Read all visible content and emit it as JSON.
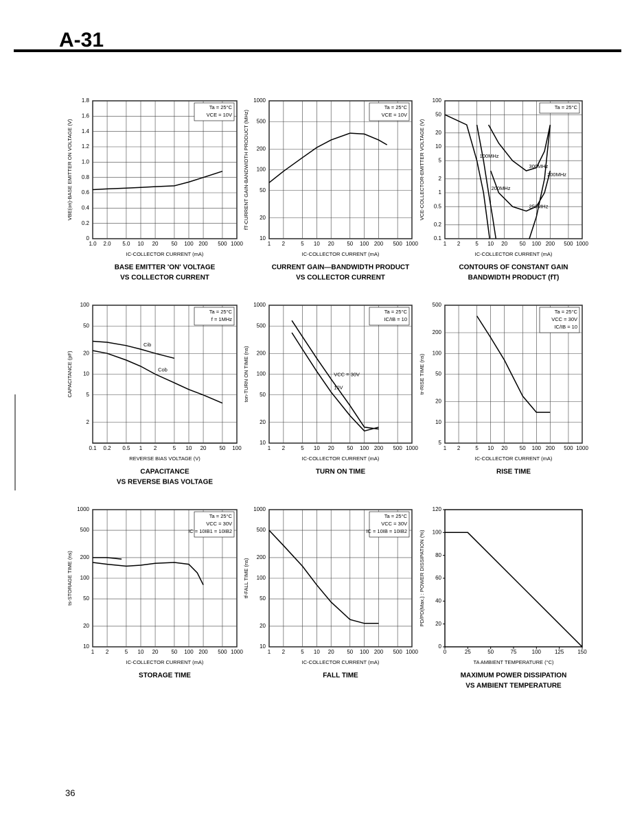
{
  "header": {
    "title": "A-31"
  },
  "page_number": "36",
  "chart_data": [
    {
      "type": "line",
      "title": [
        "BASE EMITTER 'ON' VOLTAGE",
        "VS COLLECTOR CURRENT"
      ],
      "x_label": "IC-COLLECTOR CURRENT (mA)",
      "y_label": "VBE(on)-BASE EMITTER ON VOLTAGE (V)",
      "annotations": [
        "Ta = 25°C",
        "VCE = 10V"
      ],
      "xlog": true,
      "ylog": false,
      "grid": true,
      "xlim": [
        1,
        1000
      ],
      "xticks": [
        {
          "value": 1,
          "label": "1.0"
        },
        {
          "value": 2,
          "label": "2.0"
        },
        {
          "value": 5,
          "label": "5.0"
        },
        10,
        20,
        50,
        100,
        200,
        500,
        1000
      ],
      "ylim": [
        0,
        1.8
      ],
      "yticks": [
        0,
        0.2,
        0.4,
        0.6,
        0.8,
        {
          "value": 1,
          "label": "1.0"
        },
        1.2,
        1.4,
        1.6,
        1.8
      ],
      "series": [
        {
          "color": "#000000",
          "x": [
            1,
            2,
            5,
            10,
            20,
            50,
            100,
            200,
            500
          ],
          "values": [
            0.64,
            0.65,
            0.66,
            0.67,
            0.68,
            0.69,
            0.74,
            0.8,
            0.88
          ]
        }
      ]
    },
    {
      "type": "line",
      "title": [
        "CURRENT GAIN—BANDWIDTH PRODUCT",
        "VS COLLECTOR CURRENT"
      ],
      "x_label": "IC-COLLECTOR CURRENT (mA)",
      "y_label": "fT-CURRENT GAIN-BANDWIDTH PRODUCT (MHz)",
      "annotations": [
        "Ta = 25°C",
        "VCE = 10V"
      ],
      "xlog": true,
      "ylog": true,
      "grid": true,
      "xlim": [
        1,
        1000
      ],
      "xticks": [
        1,
        2,
        5,
        10,
        20,
        50,
        100,
        200,
        500,
        1000
      ],
      "ylim": [
        10,
        1000
      ],
      "yticks": [
        10,
        20,
        50,
        100,
        200,
        500,
        1000
      ],
      "series": [
        {
          "color": "#000000",
          "x": [
            1,
            2,
            5,
            10,
            20,
            50,
            100,
            200,
            300
          ],
          "values": [
            65,
            95,
            150,
            210,
            270,
            340,
            330,
            270,
            230
          ]
        }
      ]
    },
    {
      "type": "line",
      "title": [
        "CONTOURS OF CONSTANT GAIN",
        "BANDWIDTH PRODUCT (fT)"
      ],
      "x_label": "IC-COLLECTOR CURRENT (mA)",
      "y_label": "VCE-COLLECTOR-EMITTER VOLTAGE (V)",
      "annotations": [
        "Ta = 25°C"
      ],
      "xlog": true,
      "ylog": true,
      "grid": true,
      "xlim": [
        1,
        1000
      ],
      "xticks": [
        1,
        2,
        5,
        10,
        20,
        50,
        100,
        200,
        500,
        1000
      ],
      "ylim": [
        0.1,
        100
      ],
      "yticks": [
        0.1,
        0.2,
        0.5,
        1,
        2,
        5,
        10,
        20,
        50,
        100
      ],
      "series": [
        {
          "name": "100MHz",
          "color": "#000000",
          "x": [
            1,
            3,
            5,
            7,
            9.5
          ],
          "values": [
            50,
            30,
            5,
            1,
            0.1
          ]
        },
        {
          "name": "200MHz",
          "color": "#000000",
          "x": [
            5,
            7,
            9,
            11,
            13
          ],
          "values": [
            30,
            5,
            1,
            0.3,
            0.1
          ]
        },
        {
          "name": "300MHz",
          "color": "#000000",
          "x": [
            9,
            15,
            30,
            60,
            100,
            150,
            200
          ],
          "values": [
            30,
            12,
            5,
            3,
            3.5,
            8,
            30
          ]
        },
        {
          "name": "250MHz",
          "color": "#000000",
          "x": [
            10,
            15,
            30,
            60,
            100,
            150,
            200
          ],
          "values": [
            3,
            1,
            0.5,
            0.4,
            0.5,
            1,
            3
          ]
        },
        {
          "name": "200MHz",
          "color": "#000000",
          "x": [
            70,
            100,
            150,
            200
          ],
          "values": [
            0.1,
            0.3,
            2,
            30
          ]
        }
      ]
    },
    {
      "type": "line",
      "title": [
        "CAPACITANCE",
        "VS REVERSE BIAS VOLTAGE"
      ],
      "x_label": "REVERSE BIAS VOLTAGE (V)",
      "y_label": "CAPACITANCE (pF)",
      "annotations": [
        "Ta = 25°C",
        "f = 1MHz"
      ],
      "xlog": true,
      "ylog": true,
      "grid": true,
      "xlim": [
        0.1,
        100
      ],
      "xticks": [
        0.1,
        0.2,
        0.5,
        1,
        2,
        5,
        10,
        20,
        50,
        100
      ],
      "ylim": [
        1,
        100
      ],
      "yticks": [
        2,
        5,
        10,
        20,
        50,
        100
      ],
      "series": [
        {
          "name": "Cib",
          "color": "#000000",
          "x": [
            0.1,
            0.2,
            0.5,
            1,
            2,
            5
          ],
          "values": [
            30,
            29,
            26,
            23,
            20,
            17
          ]
        },
        {
          "name": "Cob",
          "color": "#000000",
          "x": [
            0.1,
            0.2,
            0.5,
            1,
            2,
            5,
            10,
            20,
            50
          ],
          "values": [
            22,
            20,
            16,
            13,
            10,
            7.5,
            6,
            5,
            3.8
          ]
        }
      ]
    },
    {
      "type": "line",
      "title": [
        "TURN ON TIME"
      ],
      "x_label": "IC-COLLECTOR CURRENT (mA)",
      "y_label": "ton-TURN ON TIME (ns)",
      "annotations": [
        "Ta = 25°C",
        "IC/IB = 10"
      ],
      "xlog": true,
      "ylog": true,
      "grid": true,
      "xlim": [
        1,
        1000
      ],
      "xticks": [
        1,
        2,
        5,
        10,
        20,
        50,
        100,
        200,
        500,
        1000
      ],
      "ylim": [
        10,
        1000
      ],
      "yticks": [
        10,
        20,
        50,
        100,
        200,
        500,
        1000
      ],
      "series": [
        {
          "name": "VCC = 30V",
          "color": "#000000",
          "x": [
            3,
            5,
            10,
            20,
            50,
            100,
            200
          ],
          "values": [
            600,
            350,
            170,
            85,
            35,
            17,
            16
          ]
        },
        {
          "name": "10V",
          "color": "#000000",
          "x": [
            3,
            5,
            10,
            20,
            50,
            100,
            200
          ],
          "values": [
            400,
            230,
            110,
            55,
            25,
            15,
            17
          ]
        }
      ]
    },
    {
      "type": "line",
      "title": [
        "RISE TIME"
      ],
      "x_label": "IC-COLLECTOR CURRENT (mA)",
      "y_label": "tr-RISE TIME (ns)",
      "annotations": [
        "Ta = 25°C",
        "VCC = 30V",
        "IC/IB = 10"
      ],
      "xlog": true,
      "ylog": true,
      "grid": true,
      "xlim": [
        1,
        1000
      ],
      "xticks": [
        1,
        2,
        5,
        10,
        20,
        50,
        100,
        200,
        500,
        1000
      ],
      "ylim": [
        5,
        500
      ],
      "yticks": [
        5,
        10,
        20,
        50,
        100,
        200,
        500
      ],
      "series": [
        {
          "color": "#000000",
          "x": [
            5,
            10,
            20,
            50,
            100,
            200
          ],
          "values": [
            350,
            170,
            80,
            24,
            14,
            14
          ]
        }
      ]
    },
    {
      "type": "line",
      "title": [
        "STORAGE TIME"
      ],
      "x_label": "IC-COLLECTOR CURRENT (mA)",
      "y_label": "ts-STORAGE TIME (ns)",
      "annotations": [
        "Ta = 25°C",
        "VCC = 30V",
        "IC = 10IB1 = 10IB2"
      ],
      "xlog": true,
      "ylog": true,
      "grid": true,
      "xlim": [
        1,
        1000
      ],
      "xticks": [
        1,
        2,
        5,
        10,
        20,
        50,
        100,
        200,
        500,
        1000
      ],
      "ylim": [
        10,
        1000
      ],
      "yticks": [
        10,
        20,
        50,
        100,
        200,
        500,
        1000
      ],
      "series": [
        {
          "color": "#000000",
          "x": [
            1,
            2,
            5,
            10,
            20,
            50,
            100,
            150,
            200
          ],
          "values": [
            170,
            160,
            150,
            155,
            165,
            170,
            160,
            120,
            80
          ]
        },
        {
          "color": "#000000",
          "x": [
            1,
            2,
            4
          ],
          "values": [
            200,
            200,
            190
          ]
        }
      ]
    },
    {
      "type": "line",
      "title": [
        "FALL TIME"
      ],
      "x_label": "IC-COLLECTOR CURRENT (mA)",
      "y_label": "tf-FALL TIME (ns)",
      "annotations": [
        "Ta = 25°C",
        "VCC = 30V",
        "IC = 10IB = 10IB2"
      ],
      "xlog": true,
      "ylog": true,
      "grid": true,
      "xlim": [
        1,
        1000
      ],
      "xticks": [
        1,
        2,
        5,
        10,
        20,
        50,
        100,
        200,
        500,
        1000
      ],
      "ylim": [
        10,
        1000
      ],
      "yticks": [
        10,
        20,
        50,
        100,
        200,
        500,
        1000
      ],
      "series": [
        {
          "color": "#000000",
          "x": [
            1,
            2,
            5,
            10,
            20,
            50,
            100,
            200
          ],
          "values": [
            500,
            300,
            150,
            80,
            45,
            25,
            22,
            22
          ]
        }
      ]
    },
    {
      "type": "line",
      "title": [
        "MAXIMUM POWER DISSIPATION",
        "VS AMBIENT TEMPERATURE"
      ],
      "x_label": "TA AMBIENT TEMPERATURE (°C)",
      "y_label": "PD/PD(Max.) : POWER DISSIPATION (%)",
      "annotations": [],
      "xlog": false,
      "ylog": false,
      "grid": false,
      "xlim": [
        0,
        150
      ],
      "xticks": [
        0,
        25,
        50,
        75,
        100,
        125,
        150
      ],
      "ylim": [
        0,
        120
      ],
      "yticks": [
        0,
        20,
        40,
        60,
        80,
        100,
        120
      ],
      "series": [
        {
          "color": "#000000",
          "x": [
            0,
            25,
            150
          ],
          "values": [
            100,
            100,
            0
          ]
        }
      ]
    }
  ]
}
